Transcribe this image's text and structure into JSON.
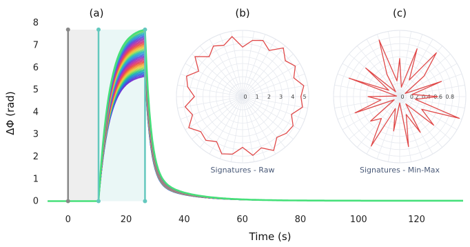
{
  "chart_data": [
    {
      "type": "line",
      "panel_label": "(a)",
      "xlabel": "Time (s)",
      "ylabel": "ΔΦ (rad)",
      "xlim": [
        -8,
        136
      ],
      "ylim": [
        -0.2,
        8.1
      ],
      "xticks": [
        0,
        20,
        40,
        60,
        80,
        100,
        120
      ],
      "yticks": [
        0,
        1,
        2,
        3,
        4,
        5,
        6,
        7,
        8
      ],
      "markers": [
        {
          "x": 0,
          "y_top": 7.7,
          "color": "#888888"
        },
        {
          "x": 10.5,
          "y_top": 7.7,
          "color": "#64c8be"
        },
        {
          "x": 26.5,
          "y_top": 7.7,
          "color": "#64c8be"
        }
      ],
      "shaded_regions": [
        {
          "x0": 0,
          "x1": 10.5,
          "color": "#e8e8e8"
        },
        {
          "x0": 10.5,
          "x1": 26.5,
          "color": "#e3f4f3"
        }
      ],
      "series_summary": {
        "count": 40,
        "rise_start": 10.5,
        "peak_time": 26.5,
        "peak_min": 5.6,
        "peak_max": 7.7,
        "tail_end_value": 0.02
      },
      "grid": false
    },
    {
      "type": "polar-line",
      "panel_label": "(b)",
      "title": "Signatures - Raw",
      "r_ticks": [
        "0",
        "1",
        "2",
        "3",
        "4",
        "5"
      ],
      "rmax": 5,
      "color": "#e04848",
      "values": [
        4.6,
        4.9,
        4.3,
        4.8,
        4.4,
        5.0,
        4.2,
        4.7,
        4.5,
        3.9,
        4.8,
        4.3,
        4.6,
        4.1,
        4.9,
        4.0,
        4.7,
        4.4,
        3.8,
        4.6,
        4.2,
        4.9,
        4.3,
        4.5,
        4.1,
        4.8,
        4.6,
        4.0,
        4.7,
        4.3,
        4.9,
        4.2,
        4.5,
        4.6,
        4.1,
        4.8
      ]
    },
    {
      "type": "polar-line",
      "panel_label": "(c)",
      "title": "Signatures - Min-Max",
      "r_ticks": [
        "0",
        "0.2",
        "0.4",
        "0.6",
        "0.8"
      ],
      "rmax": 1,
      "color": "#e04848",
      "values": [
        0.6,
        0.2,
        0.7,
        0.1,
        0.5,
        0.9,
        0.3,
        0.8,
        0.15,
        0.6,
        0.25,
        0.95,
        0.4,
        0.1,
        0.7,
        0.2,
        0.85,
        0.05,
        0.5,
        0.3,
        0.75,
        0.1,
        0.6,
        0.45,
        0.9,
        0.2,
        0.55,
        0.1,
        0.8,
        0.3,
        0.65,
        0.15,
        0.7,
        0.4,
        1.0,
        0.25
      ]
    }
  ]
}
